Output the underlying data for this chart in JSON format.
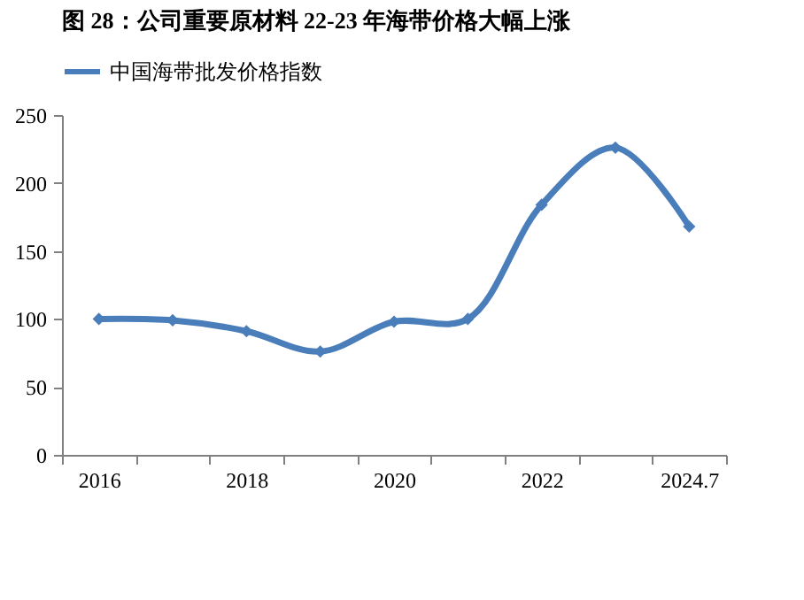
{
  "chart_data": {
    "type": "line",
    "title": "图 28：公司重要原材料 22-23 年海带价格大幅上涨",
    "categories": [
      "2016",
      null,
      "2018",
      null,
      "2020",
      null,
      "2022",
      null,
      "2024.7"
    ],
    "series": [
      {
        "name": "中国海带批发价格指数",
        "color": "#4a7ebb",
        "values": [
          100,
          99,
          91,
          76,
          98,
          100,
          184,
          226,
          168
        ]
      }
    ],
    "ylim": [
      0,
      250
    ],
    "yticks": [
      0,
      50,
      100,
      150,
      200,
      250
    ],
    "grid": false,
    "legend": "top",
    "marker": "diamond",
    "line_style": "solid"
  }
}
